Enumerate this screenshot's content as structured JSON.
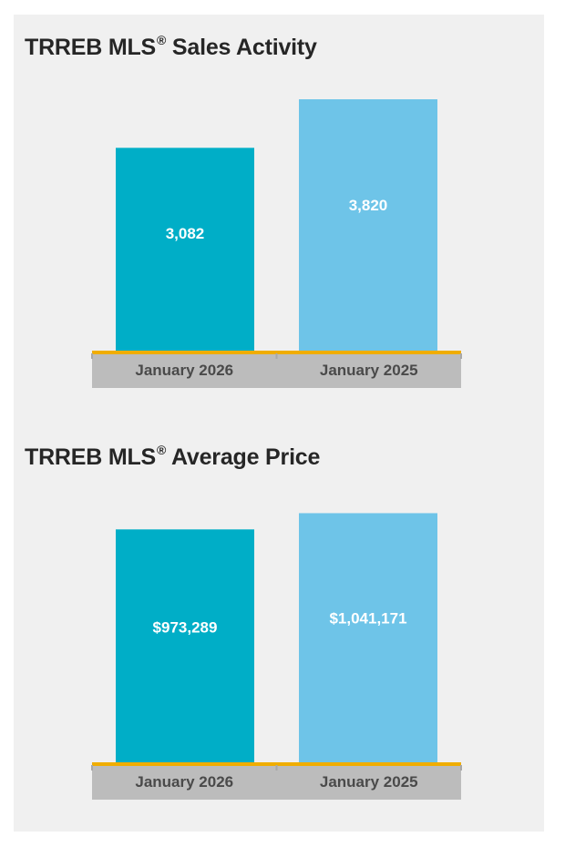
{
  "colors": {
    "background": "#f0f0f0",
    "title": "#262626",
    "bar_current": "#00aec7",
    "bar_previous": "#6ec4e8",
    "baseline": "#f0ad00",
    "category_band": "#bcbcbc",
    "category_text": "#4a4a4a",
    "value_text": "#ffffff"
  },
  "chart_data": [
    {
      "type": "bar",
      "title": "TRREB MLS",
      "title_mark": "®",
      "title_suffix": " Sales Activity",
      "categories": [
        "January 2026",
        "January 2025"
      ],
      "values": [
        3082,
        3820
      ],
      "value_labels": [
        "3,082",
        "3,820"
      ],
      "bar_colors": [
        "#00aec7",
        "#6ec4e8"
      ],
      "ylim": [
        0,
        4000
      ],
      "grid": false,
      "legend": "none"
    },
    {
      "type": "bar",
      "title": "TRREB MLS",
      "title_mark": "®",
      "title_suffix": " Average Price",
      "categories": [
        "January 2026",
        "January 2025"
      ],
      "values": [
        973289,
        1041171
      ],
      "value_labels": [
        "$973,289",
        "$1,041,171"
      ],
      "bar_colors": [
        "#00aec7",
        "#6ec4e8"
      ],
      "ylim": [
        0,
        1100000
      ],
      "grid": false,
      "legend": "none"
    }
  ]
}
